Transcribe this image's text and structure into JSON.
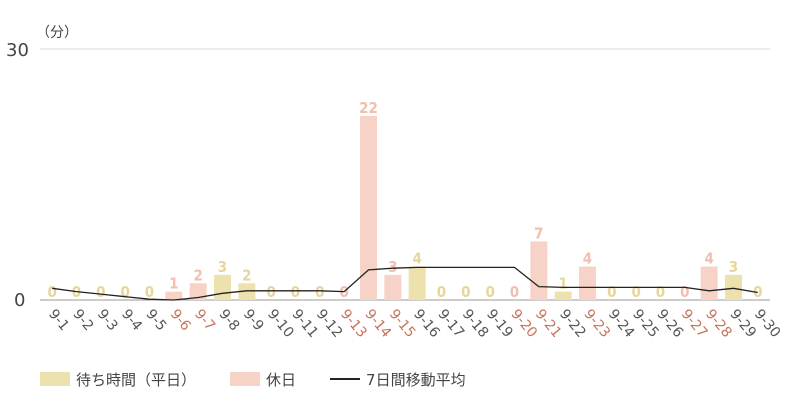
{
  "chart_data": {
    "type": "bar",
    "unit_label": "（分）",
    "ylim": [
      0,
      30
    ],
    "yticks": [
      "0",
      "30"
    ],
    "grid": true,
    "categories": [
      "9-1",
      "9-2",
      "9-3",
      "9-4",
      "9-5",
      "9-6",
      "9-7",
      "9-8",
      "9-9",
      "9-10",
      "9-11",
      "9-12",
      "9-13",
      "9-14",
      "9-15",
      "9-16",
      "9-17",
      "9-18",
      "9-19",
      "9-20",
      "9-21",
      "9-22",
      "9-23",
      "9-24",
      "9-25",
      "9-26",
      "9-27",
      "9-28",
      "9-29",
      "9-30"
    ],
    "holiday": [
      false,
      false,
      false,
      false,
      false,
      true,
      true,
      false,
      false,
      false,
      false,
      false,
      true,
      true,
      true,
      false,
      false,
      false,
      false,
      true,
      true,
      false,
      true,
      false,
      false,
      false,
      true,
      true,
      false,
      false
    ],
    "series": [
      {
        "name": "待ち時間（平日）",
        "color": "#ede2ae",
        "label_color": "#e7d69a",
        "values": [
          0,
          0,
          0,
          0,
          0,
          null,
          null,
          3,
          2,
          0,
          0,
          0,
          null,
          null,
          null,
          4,
          0,
          0,
          0,
          null,
          null,
          1,
          null,
          0,
          0,
          0,
          null,
          null,
          3,
          0
        ]
      },
      {
        "name": "休日",
        "color": "#f6d3c6",
        "label_color": "#f0c0ac",
        "values": [
          null,
          null,
          null,
          null,
          null,
          1,
          2,
          null,
          null,
          null,
          null,
          null,
          0,
          22,
          3,
          null,
          null,
          null,
          null,
          0,
          7,
          null,
          4,
          null,
          null,
          null,
          0,
          4,
          null,
          null
        ]
      },
      {
        "name": "7日間移動平均",
        "color": "#222222",
        "values": [
          1.4,
          1.0,
          0.7,
          0.4,
          0.1,
          0.0,
          0.3,
          0.8,
          1.1,
          1.1,
          1.1,
          1.1,
          1.0,
          3.6,
          3.8,
          3.9,
          3.9,
          3.9,
          3.9,
          3.9,
          1.6,
          1.5,
          1.5,
          1.5,
          1.5,
          1.5,
          1.5,
          1.1,
          1.4,
          0.9
        ]
      }
    ],
    "colors": {
      "weekday_tick": "#555555",
      "holiday_tick": "#c8725a",
      "grid": "#d9d9d9",
      "axis_text": "#444444"
    }
  }
}
